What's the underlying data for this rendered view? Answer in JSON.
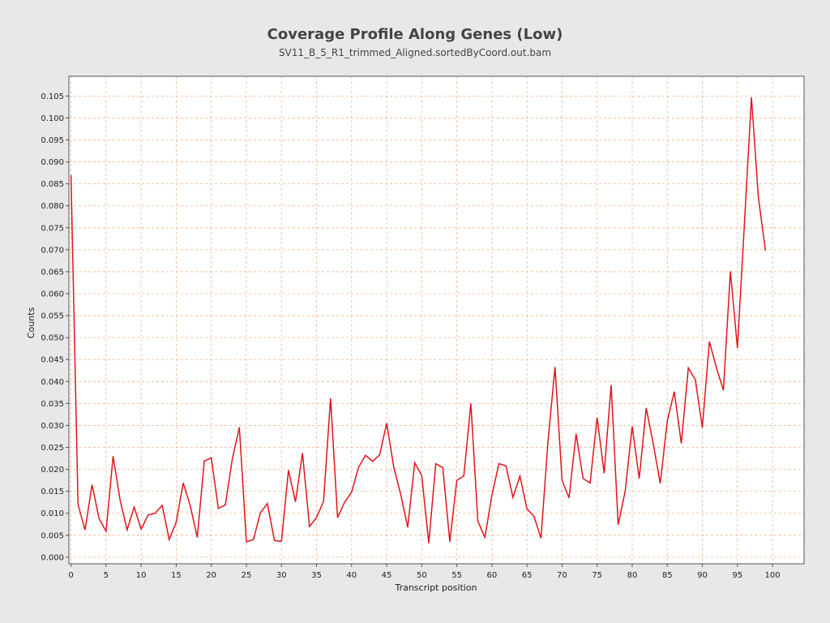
{
  "chart_data": {
    "type": "line",
    "title": "Coverage Profile Along Genes (Low)",
    "subtitle": "SV11_B_5_R1_trimmed_Aligned.sortedByCoord.out.bam",
    "xlabel": "Transcript position",
    "ylabel": "Counts",
    "xlim": [
      -0.3,
      104.5
    ],
    "ylim": [
      -0.0015,
      0.1095
    ],
    "x_ticks": [
      0,
      5,
      10,
      15,
      20,
      25,
      30,
      35,
      40,
      45,
      50,
      55,
      60,
      65,
      70,
      75,
      80,
      85,
      90,
      95,
      100
    ],
    "y_ticks": [
      0.0,
      0.005,
      0.01,
      0.015,
      0.02,
      0.025,
      0.03,
      0.035,
      0.04,
      0.045,
      0.05,
      0.055,
      0.06,
      0.065,
      0.07,
      0.075,
      0.08,
      0.085,
      0.09,
      0.095,
      0.1,
      0.105
    ],
    "y_tick_labels": [
      "0.000",
      "0.005",
      "0.010",
      "0.015",
      "0.020",
      "0.025",
      "0.030",
      "0.035",
      "0.040",
      "0.045",
      "0.050",
      "0.055",
      "0.060",
      "0.065",
      "0.070",
      "0.075",
      "0.080",
      "0.085",
      "0.090",
      "0.095",
      "0.100",
      "0.105"
    ],
    "grid": true,
    "colors": {
      "line": "#e0141b",
      "grid": "#f2b38a",
      "plot_bg": "#ffffff",
      "page_bg": "#e8e8e8",
      "axis": "#555555"
    },
    "series": [
      {
        "x": [
          0,
          1,
          2,
          3,
          4,
          5,
          6,
          7,
          8,
          9,
          10,
          11,
          12,
          13,
          14,
          15,
          16,
          17,
          18,
          19,
          20,
          21,
          22,
          23,
          24,
          25,
          26,
          27,
          28,
          29,
          30,
          31,
          32,
          33,
          34,
          35,
          36,
          37,
          38,
          39,
          40,
          41,
          42,
          43,
          44,
          45,
          46,
          47,
          48,
          49,
          50,
          51,
          52,
          53,
          54,
          55,
          56,
          57,
          58,
          59,
          60,
          61,
          62,
          63,
          64,
          65,
          66,
          67,
          68,
          69,
          70,
          71,
          72,
          73,
          74,
          75,
          76,
          77,
          78,
          79,
          80,
          81,
          82,
          83,
          84,
          85,
          86,
          87,
          88,
          89,
          90,
          91,
          92,
          93,
          94,
          95,
          96,
          97,
          98,
          99
        ],
        "values": [
          0.087,
          0.012,
          0.0062,
          0.0165,
          0.0088,
          0.0059,
          0.023,
          0.013,
          0.0062,
          0.0114,
          0.0064,
          0.0096,
          0.01,
          0.0118,
          0.004,
          0.008,
          0.0169,
          0.0117,
          0.0045,
          0.0219,
          0.0226,
          0.0111,
          0.0119,
          0.0224,
          0.0296,
          0.0035,
          0.004,
          0.0101,
          0.0122,
          0.0038,
          0.0036,
          0.0198,
          0.0126,
          0.0237,
          0.007,
          0.009,
          0.0127,
          0.0362,
          0.009,
          0.0125,
          0.0148,
          0.0205,
          0.0232,
          0.0218,
          0.0233,
          0.0305,
          0.0206,
          0.0143,
          0.0068,
          0.0215,
          0.0186,
          0.0032,
          0.0213,
          0.0204,
          0.0035,
          0.0175,
          0.0185,
          0.035,
          0.0082,
          0.0045,
          0.0141,
          0.0213,
          0.0208,
          0.0136,
          0.0185,
          0.011,
          0.0093,
          0.0043,
          0.0265,
          0.0433,
          0.0175,
          0.0135,
          0.0281,
          0.0179,
          0.0169,
          0.0318,
          0.0191,
          0.0392,
          0.0074,
          0.015,
          0.0298,
          0.0179,
          0.034,
          0.0258,
          0.0168,
          0.031,
          0.0377,
          0.0259,
          0.0431,
          0.0404,
          0.0295,
          0.0491,
          0.0432,
          0.038,
          0.0651,
          0.0476,
          0.076,
          0.1047,
          0.0817,
          0.0698
        ]
      }
    ]
  }
}
